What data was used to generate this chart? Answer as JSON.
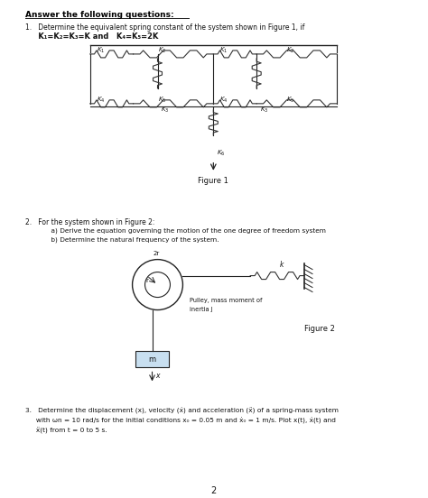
{
  "bg_color": "#ffffff",
  "page_width": 4.74,
  "page_height": 5.52,
  "header": "Answer the following questions:",
  "q1_text": "1.   Determine the equivalent spring constant of the system shown in Figure 1, if",
  "q1_eq": "     K₁=K₂=K₃=K and   K₄=K₅=2K",
  "figure1_label": "Figure 1",
  "q2_text": "2.   For the system shown in Figure 2:",
  "q2a": "         a) Derive the equation governing the motion of the one degree of freedom system",
  "q2b": "         b) Determine the natural frequency of the system.",
  "figure2_label": "Figure 2",
  "pulley_label_1": "Pulley, mass moment of",
  "pulley_label_2": "inertia J",
  "q3_text": "3.   Determine the displacement (x), velocity (ẋ) and acceleration (ẍ) of a spring-mass system",
  "q3_text2": "     with ωn = 10 rad/s for the initial conditions x₀ = 0.05 m and ẋ₀ = 1 m/s. Plot x(t), ẋ(t) and",
  "q3_text3": "     ẍ(t) from t = 0 to 5 s.",
  "page_num": "2",
  "spring_color": "#333333",
  "line_color": "#222222",
  "text_color": "#111111",
  "header_color": "#000000"
}
